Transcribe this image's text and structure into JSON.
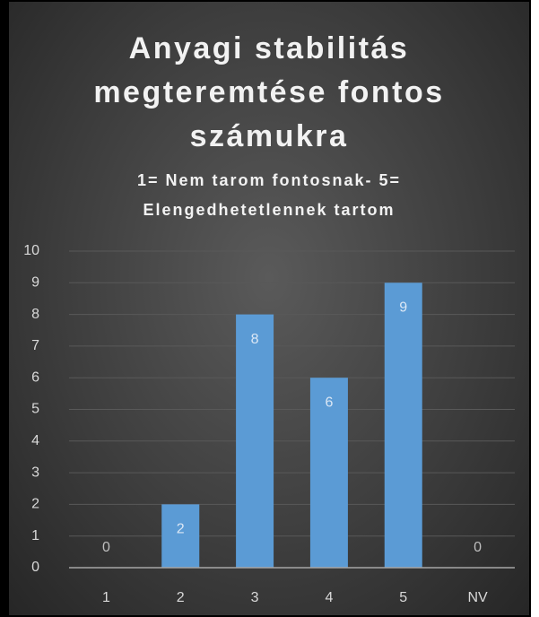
{
  "chart_data": {
    "type": "bar",
    "title": "Anyagi stabilitás megteremtése fontos számukra",
    "subtitle": "1= Nem tarom fontosnak- 5= Elengedhetetlennek tartom",
    "categories": [
      "1",
      "2",
      "3",
      "4",
      "5",
      "NV"
    ],
    "values": [
      0,
      2,
      8,
      6,
      9,
      0
    ],
    "color": "#5b9bd5",
    "ylim": [
      0,
      10
    ],
    "yticks": [
      0,
      1,
      2,
      3,
      4,
      5,
      6,
      7,
      8,
      9,
      10
    ],
    "grid": true
  }
}
